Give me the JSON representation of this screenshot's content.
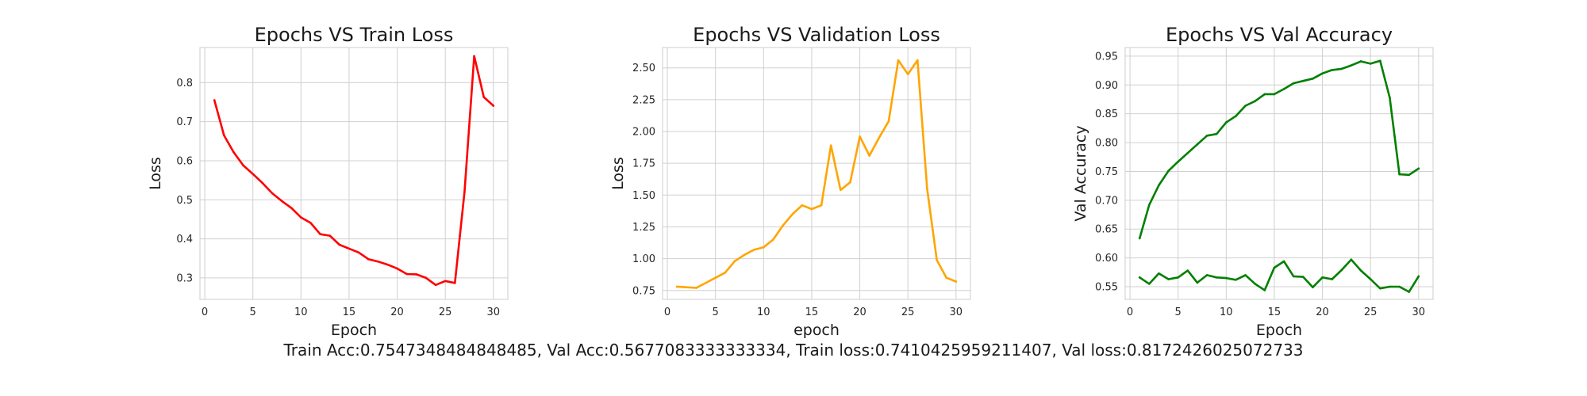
{
  "summary_text": "Train Acc:0.7547348484848485, Val Acc:0.5677083333333334, Train loss:0.7410425959211407, Val loss:0.8172426025072733",
  "chart_data": [
    {
      "type": "line",
      "title": "Epochs VS Train Loss",
      "xlabel": "Epoch",
      "ylabel": "Loss",
      "xlim": [
        -0.5,
        31.5
      ],
      "ylim": [
        0.245,
        0.89
      ],
      "xticks": [
        0,
        5,
        10,
        15,
        20,
        25,
        30
      ],
      "yticks": [
        0.3,
        0.4,
        0.5,
        0.6,
        0.7,
        0.8
      ],
      "ytick_labels": [
        "0.3",
        "0.4",
        "0.5",
        "0.6",
        "0.7",
        "0.8"
      ],
      "grid": true,
      "series": [
        {
          "color": "#ff0000",
          "x": [
            1,
            2,
            3,
            4,
            5,
            6,
            7,
            8,
            9,
            10,
            11,
            12,
            13,
            14,
            15,
            16,
            17,
            18,
            19,
            20,
            21,
            22,
            23,
            24,
            25,
            26,
            27,
            28,
            29,
            30
          ],
          "values": [
            0.755,
            0.665,
            0.622,
            0.588,
            0.566,
            0.543,
            0.517,
            0.497,
            0.479,
            0.455,
            0.441,
            0.412,
            0.408,
            0.385,
            0.375,
            0.365,
            0.348,
            0.342,
            0.334,
            0.324,
            0.31,
            0.309,
            0.3,
            0.282,
            0.292,
            0.287,
            0.52,
            0.868,
            0.763,
            0.741
          ]
        }
      ]
    },
    {
      "type": "line",
      "title": "Epochs VS Validation Loss",
      "xlabel": "epoch",
      "ylabel": "Loss",
      "xlim": [
        -0.5,
        31.5
      ],
      "ylim": [
        0.68,
        2.66
      ],
      "xticks": [
        0,
        5,
        10,
        15,
        20,
        25,
        30
      ],
      "yticks": [
        0.75,
        1.0,
        1.25,
        1.5,
        1.75,
        2.0,
        2.25,
        2.5
      ],
      "ytick_labels": [
        "0.75",
        "1.00",
        "1.25",
        "1.50",
        "1.75",
        "2.00",
        "2.25",
        "2.50"
      ],
      "grid": true,
      "series": [
        {
          "color": "#ffa500",
          "x": [
            1,
            2,
            3,
            4,
            5,
            6,
            7,
            8,
            9,
            10,
            11,
            12,
            13,
            14,
            15,
            16,
            17,
            18,
            19,
            20,
            21,
            22,
            23,
            24,
            25,
            26,
            27,
            28,
            29,
            30
          ],
          "values": [
            0.78,
            0.775,
            0.77,
            0.81,
            0.85,
            0.89,
            0.98,
            1.03,
            1.07,
            1.09,
            1.15,
            1.26,
            1.35,
            1.42,
            1.39,
            1.42,
            1.89,
            1.54,
            1.6,
            1.96,
            1.81,
            1.95,
            2.08,
            2.56,
            2.45,
            2.56,
            1.55,
            0.99,
            0.85,
            0.82
          ]
        }
      ]
    },
    {
      "type": "line",
      "title": "Epochs VS Val Accuracy",
      "xlabel": "Epoch",
      "ylabel": "Val Accuracy",
      "xlim": [
        -0.5,
        31.5
      ],
      "ylim": [
        0.528,
        0.965
      ],
      "xticks": [
        0,
        5,
        10,
        15,
        20,
        25,
        30
      ],
      "yticks": [
        0.55,
        0.6,
        0.65,
        0.7,
        0.75,
        0.8,
        0.85,
        0.9,
        0.95
      ],
      "ytick_labels": [
        "0.55",
        "0.60",
        "0.65",
        "0.70",
        "0.75",
        "0.80",
        "0.85",
        "0.90",
        "0.95"
      ],
      "grid": true,
      "series": [
        {
          "color": "#008000",
          "x": [
            1,
            2,
            3,
            4,
            5,
            6,
            7,
            8,
            9,
            10,
            11,
            12,
            13,
            14,
            15,
            16,
            17,
            18,
            19,
            20,
            21,
            22,
            23,
            24,
            25,
            26,
            27,
            28,
            29,
            30
          ],
          "values": [
            0.634,
            0.692,
            0.726,
            0.751,
            0.767,
            0.782,
            0.797,
            0.812,
            0.815,
            0.835,
            0.846,
            0.864,
            0.872,
            0.884,
            0.884,
            0.893,
            0.903,
            0.907,
            0.911,
            0.92,
            0.926,
            0.928,
            0.934,
            0.941,
            0.937,
            0.942,
            0.878,
            0.745,
            0.744,
            0.755
          ]
        },
        {
          "color": "#008000",
          "x": [
            1,
            2,
            3,
            4,
            5,
            6,
            7,
            8,
            9,
            10,
            11,
            12,
            13,
            14,
            15,
            16,
            17,
            18,
            19,
            20,
            21,
            22,
            23,
            24,
            25,
            26,
            27,
            28,
            29,
            30
          ],
          "values": [
            0.566,
            0.555,
            0.573,
            0.563,
            0.566,
            0.578,
            0.557,
            0.57,
            0.566,
            0.565,
            0.562,
            0.57,
            0.555,
            0.544,
            0.583,
            0.594,
            0.568,
            0.567,
            0.549,
            0.566,
            0.563,
            0.579,
            0.597,
            0.578,
            0.563,
            0.547,
            0.55,
            0.55,
            0.541,
            0.568
          ]
        }
      ]
    }
  ]
}
